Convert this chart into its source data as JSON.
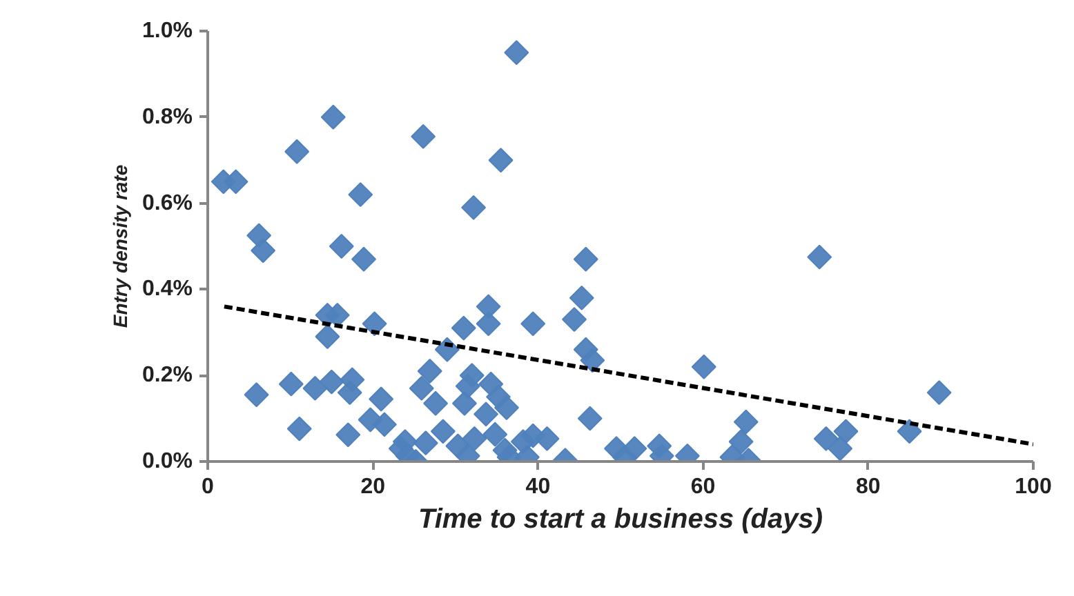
{
  "chart_data": {
    "type": "scatter",
    "xlabel": "Time to start a business (days)",
    "ylabel": "Entry density rate",
    "xlim": [
      0,
      100
    ],
    "ylim": [
      0,
      1.0
    ],
    "xticks": [
      0,
      20,
      40,
      60,
      80,
      100
    ],
    "yticks": [
      {
        "value": 0,
        "label": "0.0%"
      },
      {
        "value": 0.2,
        "label": "0.2%"
      },
      {
        "value": 0.4,
        "label": "0.4%"
      },
      {
        "value": 0.6,
        "label": "0.6%"
      },
      {
        "value": 0.8,
        "label": "0.8%"
      },
      {
        "value": 1.0,
        "label": "1.0%"
      }
    ],
    "grid": false,
    "series": [
      {
        "color": "#4f81bd",
        "marker": "diamond",
        "x": [
          1.9,
          3.4,
          5.9,
          6.2,
          6.7,
          10.8,
          10.1,
          11.1,
          15.2,
          13.0,
          14.5,
          15.7,
          14.5,
          15.0,
          18.5,
          16.2,
          18.9,
          17.5,
          17.2,
          17.0,
          20.2,
          21.0,
          19.7,
          21.4,
          23.9,
          24.2,
          25.2,
          23.4,
          26.4,
          26.1,
          32.2,
          35.5,
          37.4,
          45.8,
          26.9,
          25.9,
          27.6,
          29.0,
          28.5,
          31.0,
          31.5,
          32.0,
          31.1,
          30.3,
          31.5,
          32.3,
          34.0,
          34.0,
          34.3,
          33.7,
          35.2,
          36.2,
          34.8,
          36.0,
          36.5,
          39.4,
          38.2,
          39.4,
          38.7,
          41.1,
          43.3,
          44.4,
          45.3,
          45.8,
          46.6,
          46.3,
          49.5,
          50.5,
          51.7,
          54.7,
          55.0,
          58.1,
          60.1,
          65.2,
          64.6,
          63.5,
          65.5,
          74.1,
          74.9,
          77.3,
          76.6,
          85.0,
          88.6
        ],
        "values": [
          0.65,
          0.65,
          0.155,
          0.525,
          0.49,
          0.72,
          0.18,
          0.076,
          0.8,
          0.17,
          0.34,
          0.34,
          0.29,
          0.185,
          0.62,
          0.5,
          0.47,
          0.19,
          0.16,
          0.062,
          0.32,
          0.145,
          0.097,
          0.086,
          0.046,
          0.013,
          0.0,
          0.03,
          0.043,
          0.755,
          0.59,
          0.7,
          0.95,
          0.47,
          0.21,
          0.17,
          0.135,
          0.26,
          0.07,
          0.31,
          0.175,
          0.2,
          0.135,
          0.036,
          0.013,
          0.053,
          0.36,
          0.32,
          0.18,
          0.11,
          0.15,
          0.125,
          0.063,
          0.026,
          0.01,
          0.32,
          0.046,
          0.06,
          0.01,
          0.053,
          0.003,
          0.33,
          0.38,
          0.26,
          0.235,
          0.1,
          0.03,
          0.01,
          0.03,
          0.036,
          0.013,
          0.013,
          0.22,
          0.092,
          0.046,
          0.01,
          0.003,
          0.475,
          0.053,
          0.07,
          0.03,
          0.07,
          0.16
        ]
      },
      {
        "type": "line",
        "color": "#000000",
        "line_style": "dashed",
        "marker": "none",
        "x": [
          2,
          100
        ],
        "values": [
          0.36,
          0.04
        ]
      }
    ]
  }
}
